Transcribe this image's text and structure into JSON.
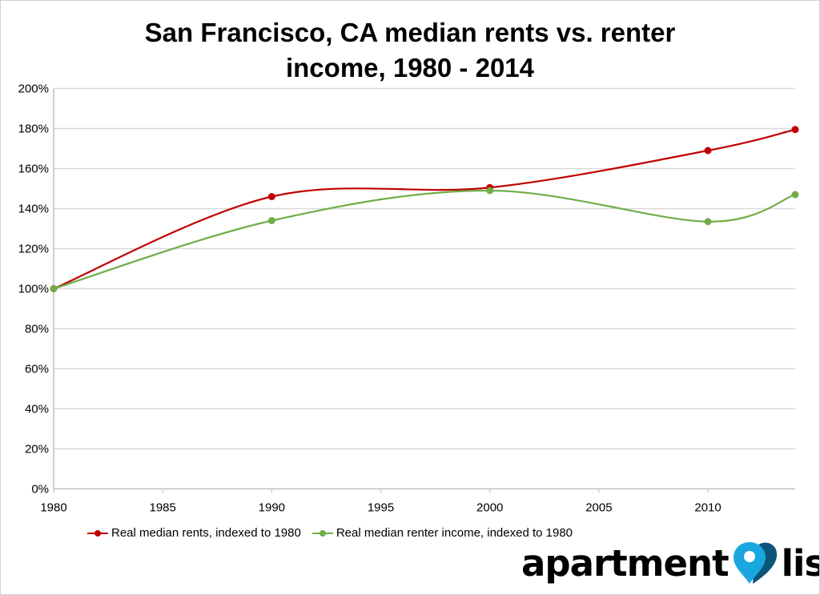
{
  "chart_data": {
    "type": "line",
    "title": "San Francisco, CA median rents vs. renter income, 1980 - 2014",
    "title_lines": [
      "San Francisco, CA median rents vs.  renter",
      "income, 1980 - 2014"
    ],
    "xlabel": "",
    "ylabel": "",
    "xlim": [
      1980,
      2014
    ],
    "ylim": [
      0,
      200
    ],
    "x_ticks": [
      "1980",
      "1985",
      "1990",
      "1995",
      "2000",
      "2005",
      "2010"
    ],
    "y_ticks": [
      "0%",
      "20%",
      "40%",
      "60%",
      "80%",
      "100%",
      "120%",
      "140%",
      "160%",
      "180%",
      "200%"
    ],
    "grid": true,
    "smooth": true,
    "legend_position": "bottom",
    "x": [
      1980,
      1990,
      2000,
      2010,
      2014
    ],
    "series": [
      {
        "name": "Real median rents, indexed to 1980",
        "color": "#c00000",
        "values": [
          100,
          146,
          150.5,
          169,
          179.5
        ]
      },
      {
        "name": "Real median renter income, indexed to 1980",
        "color": "#70ad47",
        "values": [
          100,
          134,
          149,
          133.5,
          147
        ]
      }
    ]
  },
  "logo": {
    "text_left": "apartment",
    "text_right": "list",
    "pin_color": "#1aa7e0",
    "heart_color": "#0b5578"
  }
}
